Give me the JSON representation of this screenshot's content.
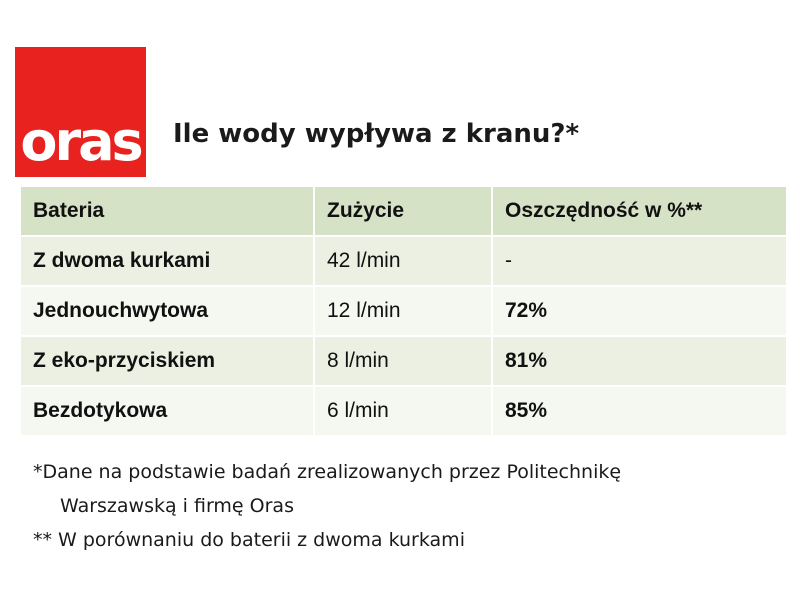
{
  "logo": {
    "text": "oras"
  },
  "title": "Ile wody wypływa z kranu?*",
  "table": {
    "headers": [
      "Bateria",
      "Zużycie",
      "Oszczędność w %**"
    ],
    "rows": [
      {
        "bateria": "Z dwoma kurkami",
        "zuzycie": "42 l/min",
        "oszczednosc": "-"
      },
      {
        "bateria": "Jednouchwytowa",
        "zuzycie": "12 l/min",
        "oszczednosc": "72%"
      },
      {
        "bateria": "Z eko-przyciskiem",
        "zuzycie": "8 l/min",
        "oszczednosc": "81%"
      },
      {
        "bateria": "Bezdotykowa",
        "zuzycie": "6 l/min",
        "oszczednosc": "85%"
      }
    ]
  },
  "footnotes": {
    "line1": "*Dane na podstawie badań zrealizowanych przez Politechnikę",
    "line2": "Warszawską i firmę Oras",
    "line3": "** W porównaniu do baterii z dwoma kurkami"
  },
  "colors": {
    "logo_red": "#e8221f",
    "highlight_red": "#d11313",
    "header_green": "#d6e2c5",
    "row_green_dark": "#ebf0e3",
    "row_green_light": "#f5f8f1"
  }
}
